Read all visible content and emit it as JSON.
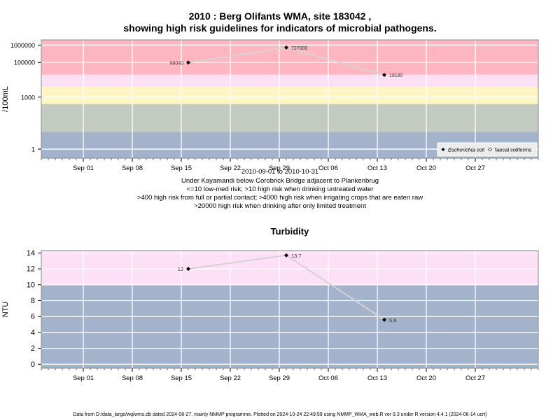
{
  "title_line1": "2010 : Berg Olifants WMA, site 183042 ,",
  "title_line2": "showing high risk guidelines for indicators of microbial pathogens.",
  "subtitle_lines": [
    "2010-09-01 to 2010-10-31",
    "Under Kayamandi below Corobrick Bridge adjacent to Plankenbrug",
    "<=10 low-med risk; >10 high risk when drinking untreated water",
    ">400 high risk from full or partial contact; >4000 high risk when irrigating crops that are eaten raw",
    ">20000 high risk when drinking after only limited treatment"
  ],
  "footer": "Data from D:/data_large/wq/wms.db dated 2024-08-27, mainly NMMP programme. Plotted on 2024-10-24 22:49:59 using NMMP_WMA_web.R ver 9.3 under R version 4.4.1 (2024-06-14 ucrt)",
  "colors": {
    "band_blue": "#a2b3cb",
    "band_sage": "#c3cbc0",
    "band_yellow": "#fff6c4",
    "band_pink_light": "#fde0f6",
    "band_red": "#ffb6c1",
    "grid": "#ffffff",
    "line": "#d3d3d3",
    "point": "#000000"
  },
  "chart_data": [
    {
      "type": "line",
      "title": "",
      "ylabel": "/100mL",
      "y_scale": "log",
      "ylim": [
        0.3,
        2000000
      ],
      "yticks": [
        1,
        1000,
        100000,
        1000000
      ],
      "ytick_labels": [
        "1",
        "1000",
        "100000",
        "1000000"
      ],
      "x_axis": "date",
      "xlim": [
        "2010-08-26",
        "2010-11-05"
      ],
      "xticks": [
        "2010-09-01",
        "2010-09-08",
        "2010-09-15",
        "2010-09-22",
        "2010-09-29",
        "2010-10-06",
        "2010-10-13",
        "2010-10-20",
        "2010-10-27"
      ],
      "xtick_labels": [
        "Sep 01",
        "Sep 08",
        "Sep 15",
        "Sep 22",
        "Sep 29",
        "Oct 06",
        "Oct 13",
        "Oct 20",
        "Oct 27"
      ],
      "bands": [
        {
          "from": 0.3,
          "to": 10,
          "color": "#a2b3cb"
        },
        {
          "from": 10,
          "to": 400,
          "color": "#c3cbc0"
        },
        {
          "from": 400,
          "to": 4000,
          "color": "#fff6c4"
        },
        {
          "from": 4000,
          "to": 20000,
          "color": "#fde0f6"
        },
        {
          "from": 20000,
          "to": 2000000,
          "color": "#ffb6c1"
        }
      ],
      "series": [
        {
          "name": "Escherichia coli",
          "x": [
            "2010-09-16",
            "2010-09-30",
            "2010-10-14"
          ],
          "y": [
            98040,
            727000,
            19180
          ],
          "labels": [
            "98040",
            "727000",
            "19180"
          ],
          "label_side": [
            "left",
            "right",
            "right"
          ]
        }
      ],
      "legend": {
        "position": "bottom-right",
        "entries": [
          "Escherichia coli",
          "faecal coliforms"
        ]
      },
      "grid": true
    },
    {
      "type": "line",
      "title": "Turbidity",
      "ylabel": "NTU",
      "y_scale": "linear",
      "ylim": [
        -0.5,
        14.3
      ],
      "yticks": [
        0,
        2,
        4,
        6,
        8,
        10,
        12,
        14
      ],
      "ytick_labels": [
        "0",
        "2",
        "4",
        "6",
        "8",
        "10",
        "12",
        "14"
      ],
      "x_axis": "date",
      "xlim": [
        "2010-08-26",
        "2010-11-05"
      ],
      "xticks": [
        "2010-09-01",
        "2010-09-08",
        "2010-09-15",
        "2010-09-22",
        "2010-09-29",
        "2010-10-06",
        "2010-10-13",
        "2010-10-20",
        "2010-10-27"
      ],
      "xtick_labels": [
        "Sep 01",
        "Sep 08",
        "Sep 15",
        "Sep 22",
        "Sep 29",
        "Oct 06",
        "Oct 13",
        "Oct 20",
        "Oct 27"
      ],
      "bands": [
        {
          "from": -0.5,
          "to": 10,
          "color": "#a2b3cb"
        },
        {
          "from": 10,
          "to": 14.3,
          "color": "#fde0f6"
        }
      ],
      "series": [
        {
          "name": "",
          "x": [
            "2010-09-16",
            "2010-09-30",
            "2010-10-14"
          ],
          "y": [
            12,
            13.7,
            5.6
          ],
          "labels": [
            "12",
            "13.7",
            "5.6"
          ],
          "label_side": [
            "left",
            "right",
            "right"
          ]
        }
      ],
      "grid": true
    }
  ]
}
